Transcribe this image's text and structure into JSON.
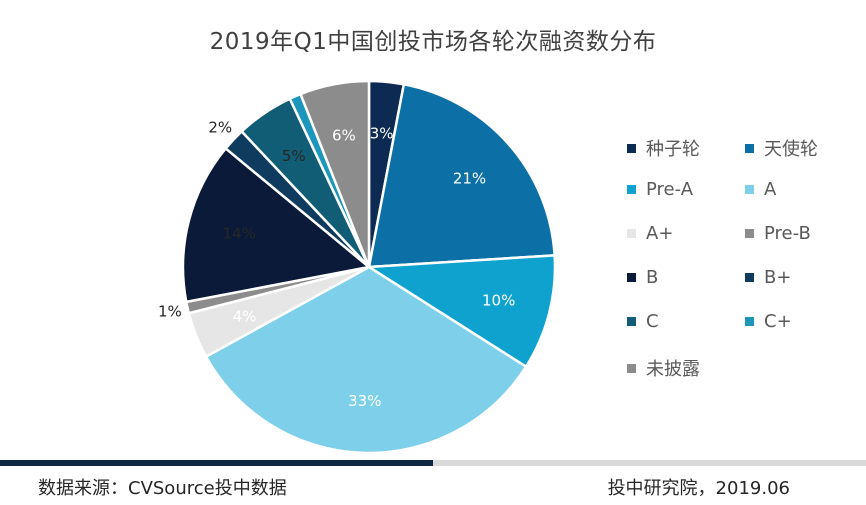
{
  "title": "2019年Q1中国创投市场各轮次融资数分布",
  "chart_data": {
    "type": "pie",
    "title": "2019年Q1中国创投市场各轮次融资数分布",
    "slices": [
      {
        "label": "种子轮",
        "value": 3,
        "display": "3%",
        "color": "#0d2a52",
        "label_color": "#ffffff"
      },
      {
        "label": "天使轮",
        "value": 21,
        "display": "21%",
        "color": "#0c6fa6",
        "label_color": "#ffffff"
      },
      {
        "label": "Pre-A",
        "value": 10,
        "display": "10%",
        "color": "#10a2cf",
        "label_color": "#ffffff"
      },
      {
        "label": "A",
        "value": 33,
        "display": "33%",
        "color": "#7ed0ea",
        "label_color": "#ffffff"
      },
      {
        "label": "A+",
        "value": 4,
        "display": "4%",
        "color": "#e6e6e6",
        "label_color": "#ffffff"
      },
      {
        "label": "Pre-B",
        "value": 1,
        "display": "1%",
        "color": "#8c8c8c",
        "label_color": "#262626",
        "label_outside": true
      },
      {
        "label": "B",
        "value": 14,
        "display": "14%",
        "color": "#0a1a38",
        "label_color": "#262626"
      },
      {
        "label": "B+",
        "value": 2,
        "display": "2%",
        "color": "#0f3b5f",
        "label_color": "#262626",
        "label_outside": true
      },
      {
        "label": "C",
        "value": 5,
        "display": "5%",
        "color": "#125d76",
        "label_color": "#262626"
      },
      {
        "label": "C+",
        "value": 1,
        "display": "",
        "color": "#1c97bb",
        "label_color": "#262626"
      },
      {
        "label": "未披露",
        "value": 6,
        "display": "6%",
        "color": "#8c8c8c",
        "label_color": "#ffffff"
      }
    ],
    "legend_position": "right"
  },
  "footer": {
    "source": "数据来源：CVSource投中数据",
    "credit": "投中研究院，2019.06"
  }
}
